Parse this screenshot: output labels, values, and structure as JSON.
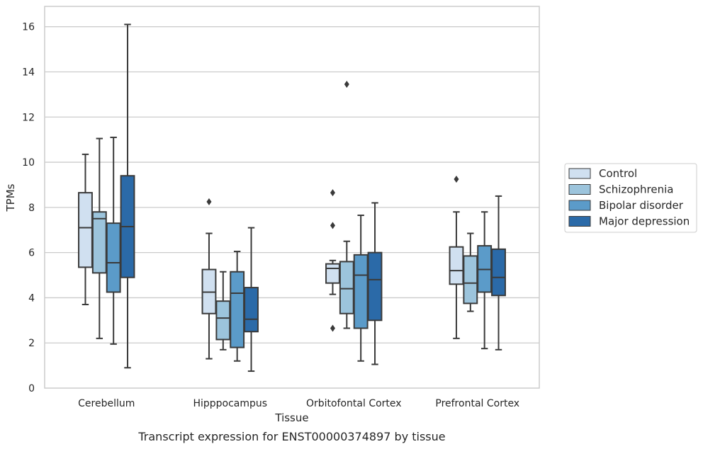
{
  "chart_data": {
    "type": "boxplot",
    "caption": "Transcript expression for ENST00000374897 by tissue",
    "xlabel": "Tissue",
    "ylabel": "TPMs",
    "ylim": [
      0,
      16.9
    ],
    "yticks": [
      0,
      2,
      4,
      6,
      8,
      10,
      12,
      14,
      16
    ],
    "grid": "horizontal",
    "legend_position": "right",
    "categories": [
      "Cerebellum",
      "Hipppocampus",
      "Orbitofontal Cortex",
      "Prefrontal Cortex"
    ],
    "series": [
      {
        "name": "Control",
        "color": "#d0e0f0",
        "boxes": [
          {
            "whisker_low": 3.7,
            "q1": 5.35,
            "median": 7.1,
            "q3": 8.65,
            "whisker_high": 10.35,
            "outliers": []
          },
          {
            "whisker_low": 1.3,
            "q1": 3.3,
            "median": 4.25,
            "q3": 5.25,
            "whisker_high": 6.85,
            "outliers": [
              8.25
            ]
          },
          {
            "whisker_low": 4.15,
            "q1": 4.65,
            "median": 5.3,
            "q3": 5.5,
            "whisker_high": 5.65,
            "outliers": [
              2.65,
              7.2,
              8.65
            ]
          },
          {
            "whisker_low": 2.2,
            "q1": 4.6,
            "median": 5.2,
            "q3": 6.25,
            "whisker_high": 7.8,
            "outliers": [
              9.25
            ]
          }
        ]
      },
      {
        "name": "Schizophrenia",
        "color": "#9cc4dc",
        "boxes": [
          {
            "whisker_low": 2.2,
            "q1": 5.1,
            "median": 7.5,
            "q3": 7.8,
            "whisker_high": 11.05,
            "outliers": []
          },
          {
            "whisker_low": 1.7,
            "q1": 2.15,
            "median": 3.1,
            "q3": 3.85,
            "whisker_high": 5.15,
            "outliers": []
          },
          {
            "whisker_low": 2.65,
            "q1": 3.3,
            "median": 4.4,
            "q3": 5.6,
            "whisker_high": 6.5,
            "outliers": [
              13.45
            ]
          },
          {
            "whisker_low": 3.4,
            "q1": 3.75,
            "median": 4.65,
            "q3": 5.85,
            "whisker_high": 6.85,
            "outliers": []
          }
        ]
      },
      {
        "name": "Bipolar disorder",
        "color": "#5b9bc9",
        "boxes": [
          {
            "whisker_low": 1.95,
            "q1": 4.25,
            "median": 5.55,
            "q3": 7.3,
            "whisker_high": 11.1,
            "outliers": []
          },
          {
            "whisker_low": 1.2,
            "q1": 1.8,
            "median": 4.2,
            "q3": 5.15,
            "whisker_high": 6.05,
            "outliers": []
          },
          {
            "whisker_low": 1.2,
            "q1": 2.65,
            "median": 5.0,
            "q3": 5.9,
            "whisker_high": 7.65,
            "outliers": []
          },
          {
            "whisker_low": 1.75,
            "q1": 4.25,
            "median": 5.25,
            "q3": 6.3,
            "whisker_high": 7.8,
            "outliers": []
          }
        ]
      },
      {
        "name": "Major depression",
        "color": "#2b6aa8",
        "boxes": [
          {
            "whisker_low": 0.9,
            "q1": 4.9,
            "median": 7.15,
            "q3": 9.4,
            "whisker_high": 16.1,
            "outliers": []
          },
          {
            "whisker_low": 0.75,
            "q1": 2.5,
            "median": 3.05,
            "q3": 4.45,
            "whisker_high": 7.1,
            "outliers": []
          },
          {
            "whisker_low": 1.05,
            "q1": 3.0,
            "median": 4.8,
            "q3": 6.0,
            "whisker_high": 8.2,
            "outliers": []
          },
          {
            "whisker_low": 1.7,
            "q1": 4.1,
            "median": 4.9,
            "q3": 6.15,
            "whisker_high": 8.5,
            "outliers": []
          }
        ]
      }
    ]
  }
}
